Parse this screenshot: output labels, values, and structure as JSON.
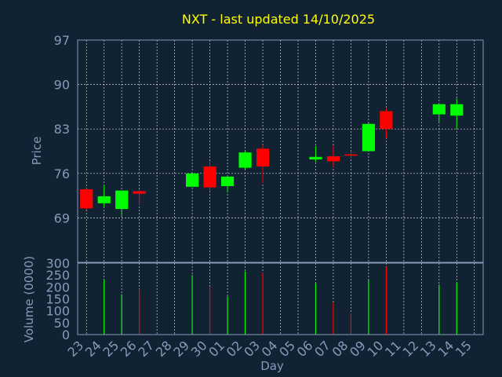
{
  "chart_data": {
    "type": "candlestick",
    "title": "NXT - last updated 14/10/2025",
    "ylabel_price": "Price",
    "ylabel_volume": "Volume (0000)",
    "xlabel": "Day",
    "price_ticks": [
      69,
      76,
      83,
      90,
      97
    ],
    "volume_ticks": [
      0,
      50,
      100,
      150,
      200,
      250,
      300
    ],
    "price_ylim": [
      62,
      97
    ],
    "volume_ylim": [
      0,
      300
    ],
    "grid": true,
    "colors": {
      "background": "#112233",
      "title": "#ffff00",
      "axis_text": "#8899bb",
      "grid": "#ffffff",
      "frame": "#8899bb",
      "up": "#00ff00",
      "down": "#ff0000"
    },
    "categories": [
      "23",
      "24",
      "25",
      "26",
      "27",
      "28",
      "29",
      "30",
      "01",
      "02",
      "03",
      "04",
      "05",
      "06",
      "07",
      "08",
      "09",
      "10",
      "11",
      "12",
      "13",
      "14",
      "15"
    ],
    "candles": [
      {
        "day": "23",
        "open": 73.5,
        "high": 73.6,
        "low": 70.3,
        "close": 70.5
      },
      {
        "day": "24",
        "open": 71.3,
        "high": 74.2,
        "low": 70.7,
        "close": 72.4
      },
      {
        "day": "25",
        "open": 70.4,
        "high": 73.3,
        "low": 69.3,
        "close": 73.3
      },
      {
        "day": "26",
        "open": 73.2,
        "high": 73.4,
        "low": 71.0,
        "close": 72.8
      },
      {
        "day": "29",
        "open": 73.9,
        "high": 76.2,
        "low": 73.9,
        "close": 76.0
      },
      {
        "day": "30",
        "open": 77.1,
        "high": 77.9,
        "low": 73.2,
        "close": 73.8
      },
      {
        "day": "01",
        "open": 74.0,
        "high": 75.7,
        "low": 73.0,
        "close": 75.5
      },
      {
        "day": "02",
        "open": 76.9,
        "high": 79.5,
        "low": 76.7,
        "close": 79.3
      },
      {
        "day": "03",
        "open": 79.9,
        "high": 80.5,
        "low": 74.5,
        "close": 77.1
      },
      {
        "day": "06",
        "open": 78.2,
        "high": 80.3,
        "low": 77.8,
        "close": 78.6
      },
      {
        "day": "07",
        "open": 78.7,
        "high": 80.4,
        "low": 77.0,
        "close": 77.9
      },
      {
        "day": "08",
        "open": 79.0,
        "high": 79.5,
        "low": 78.3,
        "close": 78.8
      },
      {
        "day": "09",
        "open": 79.5,
        "high": 83.9,
        "low": 79.5,
        "close": 83.8
      },
      {
        "day": "10",
        "open": 85.8,
        "high": 86.3,
        "low": 81.5,
        "close": 83.0
      },
      {
        "day": "13",
        "open": 85.3,
        "high": 86.9,
        "low": 84.1,
        "close": 86.9
      },
      {
        "day": "14",
        "open": 85.1,
        "high": 87.8,
        "low": 83.1,
        "close": 86.9
      }
    ],
    "volume": [
      {
        "day": "24",
        "value": 230,
        "dir": "up"
      },
      {
        "day": "25",
        "value": 170,
        "dir": "up"
      },
      {
        "day": "26",
        "value": 190,
        "dir": "down"
      },
      {
        "day": "29",
        "value": 250,
        "dir": "up"
      },
      {
        "day": "30",
        "value": 200,
        "dir": "down"
      },
      {
        "day": "01",
        "value": 160,
        "dir": "up"
      },
      {
        "day": "02",
        "value": 265,
        "dir": "up"
      },
      {
        "day": "03",
        "value": 260,
        "dir": "down"
      },
      {
        "day": "06",
        "value": 215,
        "dir": "up"
      },
      {
        "day": "07",
        "value": 135,
        "dir": "down"
      },
      {
        "day": "08",
        "value": 90,
        "dir": "down"
      },
      {
        "day": "09",
        "value": 230,
        "dir": "up"
      },
      {
        "day": "10",
        "value": 285,
        "dir": "down"
      },
      {
        "day": "13",
        "value": 210,
        "dir": "up"
      },
      {
        "day": "14",
        "value": 220,
        "dir": "up"
      }
    ]
  }
}
